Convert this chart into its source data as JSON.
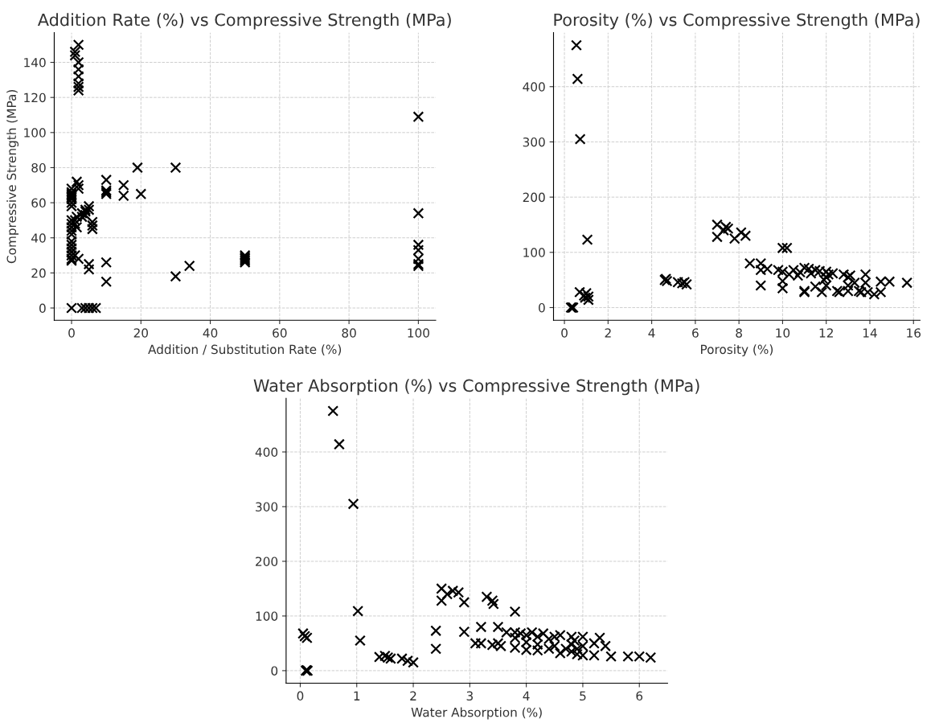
{
  "chart_data": [
    {
      "type": "scatter",
      "title": "Addition Rate (%) vs Compressive Strength (MPa)",
      "xlabel": "Addition / Substitution Rate (%)",
      "ylabel": "Compressive Strength (MPa)",
      "marker": "cross",
      "grid": true,
      "xlim": [
        -5,
        105
      ],
      "ylim": [
        -7,
        157
      ],
      "xticks": [
        0,
        20,
        40,
        60,
        80,
        100
      ],
      "yticks": [
        0,
        20,
        40,
        60,
        80,
        100,
        120,
        140
      ],
      "series": [
        {
          "color": "#000000",
          "x": [
            0,
            0,
            0,
            0,
            0,
            0,
            0,
            0,
            0,
            0,
            0,
            0,
            0,
            0,
            0,
            0,
            0,
            0,
            0,
            0,
            0,
            1,
            1,
            2,
            2,
            2,
            2,
            2,
            2,
            2,
            1.5,
            2,
            2,
            1.5,
            1,
            1,
            1.5,
            1,
            2,
            3,
            3,
            4,
            4,
            4,
            5,
            5,
            5,
            5,
            6,
            6,
            6,
            3,
            4,
            5,
            6,
            7,
            10,
            10,
            10,
            10,
            10,
            10,
            15,
            15,
            19,
            20,
            30,
            30,
            34,
            50,
            50,
            50,
            50,
            50,
            100,
            100,
            100,
            100,
            100,
            100,
            100
          ],
          "values": [
            68,
            66,
            64,
            62,
            60,
            58,
            63,
            65,
            50,
            48,
            46,
            44,
            42,
            38,
            36,
            34,
            32,
            30,
            28,
            27,
            0,
            146,
            144,
            150,
            140,
            136,
            132,
            128,
            126,
            124,
            72,
            70,
            68,
            52,
            50,
            48,
            46,
            30,
            28,
            54,
            52,
            56,
            55,
            53,
            58,
            56,
            25,
            22,
            49,
            47,
            45,
            0,
            0,
            0,
            0,
            0,
            73,
            67,
            66,
            65,
            26,
            15,
            70,
            64,
            80,
            65,
            80,
            18,
            24,
            30,
            29,
            28,
            27,
            26,
            109,
            54,
            36,
            33,
            28,
            25,
            24
          ]
        }
      ]
    },
    {
      "type": "scatter",
      "title": "Porosity (%) vs Compressive Strength (MPa)",
      "xlabel": "Porosity (%)",
      "marker": "cross",
      "grid": true,
      "xlim": [
        -0.5,
        16.3
      ],
      "ylim": [
        -23,
        498
      ],
      "xticks": [
        0,
        2,
        4,
        6,
        8,
        10,
        12,
        14,
        16
      ],
      "yticks": [
        0,
        100,
        200,
        300,
        400
      ],
      "series": [
        {
          "color": "#000000",
          "x": [
            0.55,
            0.6,
            0.72,
            1.05,
            0.3,
            0.35,
            0.4,
            0.7,
            0.9,
            1.0,
            1.1,
            1.1,
            0.95,
            4.6,
            4.7,
            4.65,
            5.2,
            5.4,
            5.5,
            5.6,
            7.0,
            7.0,
            7.3,
            7.4,
            7.5,
            7.8,
            8.1,
            8.3,
            8.5,
            9.0,
            9.0,
            9.0,
            9.3,
            9.8,
            10.0,
            10.2,
            10.0,
            10.0,
            10.0,
            10.3,
            10.5,
            10.7,
            11.0,
            11.0,
            11.0,
            11.2,
            11.3,
            11.5,
            11.5,
            11.7,
            11.8,
            12.0,
            12.0,
            12.0,
            12.3,
            12.5,
            12.6,
            12.8,
            13.0,
            13.0,
            13.0,
            13.1,
            13.3,
            13.5,
            13.6,
            13.8,
            13.8,
            13.9,
            14.2,
            14.5,
            14.5,
            14.9,
            15.7,
            11.9,
            12.1,
            10.8
          ],
          "values": [
            475,
            414,
            305,
            123,
            0,
            0,
            0,
            28,
            22,
            26,
            20,
            14,
            18,
            50,
            48,
            52,
            46,
            44,
            46,
            42,
            150,
            128,
            140,
            146,
            143,
            125,
            136,
            130,
            80,
            80,
            68,
            40,
            70,
            68,
            108,
            108,
            65,
            48,
            35,
            60,
            68,
            58,
            72,
            30,
            28,
            70,
            62,
            68,
            38,
            66,
            28,
            65,
            55,
            40,
            62,
            30,
            28,
            60,
            55,
            40,
            30,
            58,
            45,
            30,
            28,
            60,
            45,
            28,
            24,
            28,
            47,
            47,
            45,
            50,
            60,
            64
          ]
        }
      ]
    },
    {
      "type": "scatter",
      "title": "Water Absorption (%) vs Compressive Strength (MPa)",
      "xlabel": "Water Absorption (%)",
      "marker": "cross",
      "grid": true,
      "xlim": [
        -0.25,
        6.5
      ],
      "ylim": [
        -23,
        498
      ],
      "xticks": [
        0,
        1,
        2,
        3,
        4,
        5,
        6
      ],
      "yticks": [
        0,
        100,
        200,
        300,
        400
      ],
      "series": [
        {
          "color": "#000000",
          "x": [
            0.58,
            0.69,
            0.94,
            1.02,
            1.06,
            0.05,
            0.08,
            0.12,
            0.1,
            0.13,
            0.11,
            1.4,
            1.5,
            1.55,
            1.6,
            1.8,
            1.9,
            2.0,
            2.4,
            2.4,
            2.5,
            2.5,
            2.6,
            2.7,
            2.8,
            2.9,
            2.9,
            3.1,
            3.2,
            3.2,
            3.3,
            3.4,
            3.42,
            3.4,
            3.5,
            3.5,
            3.55,
            3.65,
            3.8,
            3.8,
            3.8,
            3.8,
            3.9,
            4.0,
            4.0,
            4.0,
            4.1,
            4.2,
            4.2,
            4.2,
            4.3,
            4.4,
            4.4,
            4.5,
            4.5,
            4.6,
            4.6,
            4.8,
            4.8,
            4.8,
            4.9,
            4.9,
            5.0,
            5.0,
            5.0,
            5.2,
            5.2,
            5.3,
            5.4,
            5.5,
            5.8,
            6.0,
            6.2,
            4.85,
            4.7
          ],
          "values": [
            475,
            414,
            305,
            109,
            55,
            68,
            63,
            60,
            0,
            0,
            1,
            25,
            27,
            24,
            22,
            22,
            18,
            15,
            73,
            40,
            150,
            128,
            140,
            146,
            143,
            125,
            71,
            50,
            80,
            50,
            135,
            128,
            122,
            47,
            80,
            50,
            45,
            70,
            108,
            70,
            60,
            42,
            68,
            65,
            52,
            38,
            70,
            62,
            48,
            37,
            68,
            58,
            40,
            62,
            45,
            65,
            32,
            62,
            48,
            35,
            40,
            30,
            62,
            45,
            28,
            50,
            28,
            60,
            45,
            26,
            26,
            26,
            24,
            55,
            40
          ]
        }
      ]
    }
  ]
}
